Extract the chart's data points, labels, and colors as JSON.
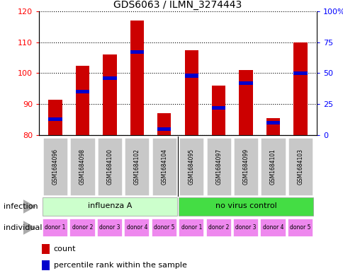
{
  "title": "GDS6063 / ILMN_3274443",
  "samples": [
    "GSM1684096",
    "GSM1684098",
    "GSM1684100",
    "GSM1684102",
    "GSM1684104",
    "GSM1684095",
    "GSM1684097",
    "GSM1684099",
    "GSM1684101",
    "GSM1684103"
  ],
  "counts": [
    91.5,
    102.5,
    106.0,
    117.0,
    87.0,
    107.5,
    96.0,
    101.0,
    85.5,
    110.0
  ],
  "percentiles": [
    13,
    35,
    46,
    67,
    5,
    48,
    22,
    42,
    10,
    50
  ],
  "ylim_left": [
    80,
    120
  ],
  "ylim_right": [
    0,
    100
  ],
  "yticks_left": [
    80,
    90,
    100,
    110,
    120
  ],
  "yticks_right": [
    0,
    25,
    50,
    75,
    100
  ],
  "ytick_labels_right": [
    "0",
    "25",
    "50",
    "75",
    "100%"
  ],
  "infection_labels": [
    "influenza A",
    "no virus control"
  ],
  "infection_colors": [
    "#ccffcc",
    "#44dd44"
  ],
  "individual_labels": [
    "donor 1",
    "donor 2",
    "donor 3",
    "donor 4",
    "donor 5",
    "donor 1",
    "donor 2",
    "donor 3",
    "donor 4",
    "donor 5"
  ],
  "individual_color": "#ee88ee",
  "bar_color": "#cc0000",
  "percentile_color": "#0000cc",
  "bar_width": 0.5,
  "sample_bg_color": "#c8c8c8",
  "legend_count_color": "#cc0000",
  "legend_percentile_color": "#0000cc",
  "border_color": "#000000"
}
